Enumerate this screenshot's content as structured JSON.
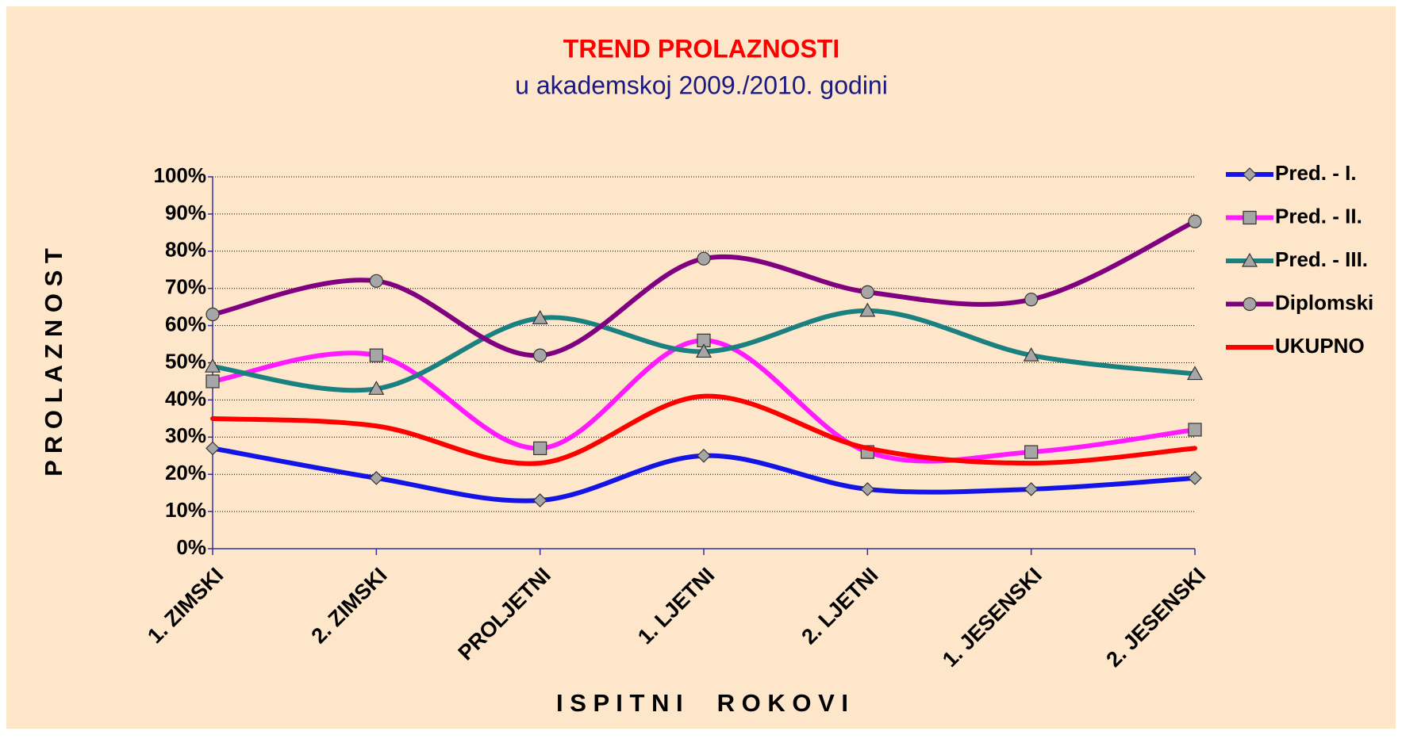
{
  "chart_data": {
    "type": "line",
    "title": "TREND PROLAZNOSTI",
    "subtitle": "u akademskoj 2009./2010. godini",
    "x_label": "I S P I T N I     R O K O V I",
    "y_label": "P R O L A Z N O S T",
    "categories": [
      "1. ZIMSKI",
      "2. ZIMSKI",
      "PROLJETNI",
      "1. LJETNI",
      "2. LJETNI",
      "1. JESENSKI",
      "2. JESENSKI"
    ],
    "series": [
      {
        "name": "Pred. - I.",
        "color": "#1414e6",
        "marker": "diamond",
        "values": [
          27,
          19,
          13,
          25,
          16,
          16,
          19
        ]
      },
      {
        "name": "Pred. - II.",
        "color": "#ff1aff",
        "marker": "square",
        "values": [
          45,
          52,
          27,
          56,
          26,
          26,
          32
        ]
      },
      {
        "name": "Pred. - III.",
        "color": "#1a8080",
        "marker": "triangle",
        "values": [
          49,
          43,
          62,
          53,
          64,
          52,
          47
        ]
      },
      {
        "name": "Diplomski",
        "color": "#800080",
        "marker": "circle",
        "values": [
          63,
          72,
          52,
          78,
          69,
          67,
          88
        ]
      },
      {
        "name": "UKUPNO",
        "color": "#ff0000",
        "marker": "none",
        "values": [
          35,
          33,
          23,
          41,
          27,
          23,
          27
        ]
      }
    ],
    "ylim": [
      0,
      100
    ],
    "yticks": [
      {
        "value": 0,
        "label": "0%"
      },
      {
        "value": 10,
        "label": "10%"
      },
      {
        "value": 20,
        "label": "20%"
      },
      {
        "value": 30,
        "label": "30%"
      },
      {
        "value": 40,
        "label": "40%"
      },
      {
        "value": 50,
        "label": "50%"
      },
      {
        "value": 60,
        "label": "60%"
      },
      {
        "value": 70,
        "label": "70%"
      },
      {
        "value": 80,
        "label": "80%"
      },
      {
        "value": 90,
        "label": "90%"
      },
      {
        "value": 100,
        "label": "100%"
      }
    ],
    "grid": true,
    "smooth": true,
    "legend": "right"
  }
}
